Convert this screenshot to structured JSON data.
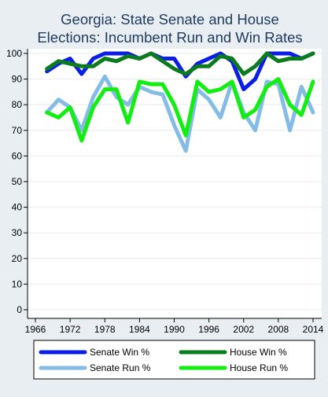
{
  "chart_data": {
    "type": "line",
    "title": "Georgia: State Senate and House Elections: Incumbent Run and Win Rates",
    "title_lines": [
      "Georgia: State Senate and House",
      "Elections: Incumbent Run and Win Rates"
    ],
    "xlabel": "",
    "ylabel": "",
    "xlim": [
      1966,
      2014
    ],
    "ylim": [
      0,
      100
    ],
    "x_ticks": [
      1966,
      1972,
      1978,
      1984,
      1990,
      1996,
      2002,
      2008,
      2014
    ],
    "y_ticks": [
      0,
      10,
      20,
      30,
      40,
      50,
      60,
      70,
      80,
      90,
      100
    ],
    "grid": true,
    "legend_position": "bottom",
    "x": [
      1968,
      1970,
      1972,
      1974,
      1976,
      1978,
      1980,
      1982,
      1984,
      1986,
      1988,
      1990,
      1992,
      1994,
      1996,
      1998,
      2000,
      2002,
      2004,
      2006,
      2008,
      2010,
      2012,
      2014
    ],
    "series": [
      {
        "name": "Senate Win %",
        "color": "#0a1ee6",
        "values": [
          93,
          96,
          98,
          92,
          98,
          100,
          100,
          100,
          98,
          100,
          98,
          98,
          91,
          96,
          98,
          100,
          97,
          86,
          90,
          100,
          100,
          100,
          98,
          100
        ]
      },
      {
        "name": "House Win %",
        "color": "#0b7c1d",
        "values": [
          94,
          97,
          96,
          95,
          95,
          98,
          97,
          99,
          98,
          100,
          97,
          94,
          92,
          95,
          95,
          99,
          98,
          92,
          95,
          100,
          97,
          98,
          98,
          100
        ]
      },
      {
        "name": "Senate Run %",
        "color": "#84bce6",
        "values": [
          77,
          82,
          79,
          70,
          83,
          91,
          83,
          80,
          87,
          85,
          84,
          72,
          62,
          86,
          82,
          75,
          89,
          77,
          70,
          89,
          88,
          70,
          87,
          77
        ]
      },
      {
        "name": "House Run %",
        "color": "#12ee12",
        "values": [
          77,
          75,
          79,
          66,
          79,
          86,
          86,
          73,
          89,
          88,
          88,
          80,
          68,
          89,
          85,
          86,
          89,
          75,
          78,
          87,
          90,
          80,
          76,
          89
        ]
      }
    ],
    "draw_order": [
      2,
      3,
      0,
      1
    ]
  }
}
